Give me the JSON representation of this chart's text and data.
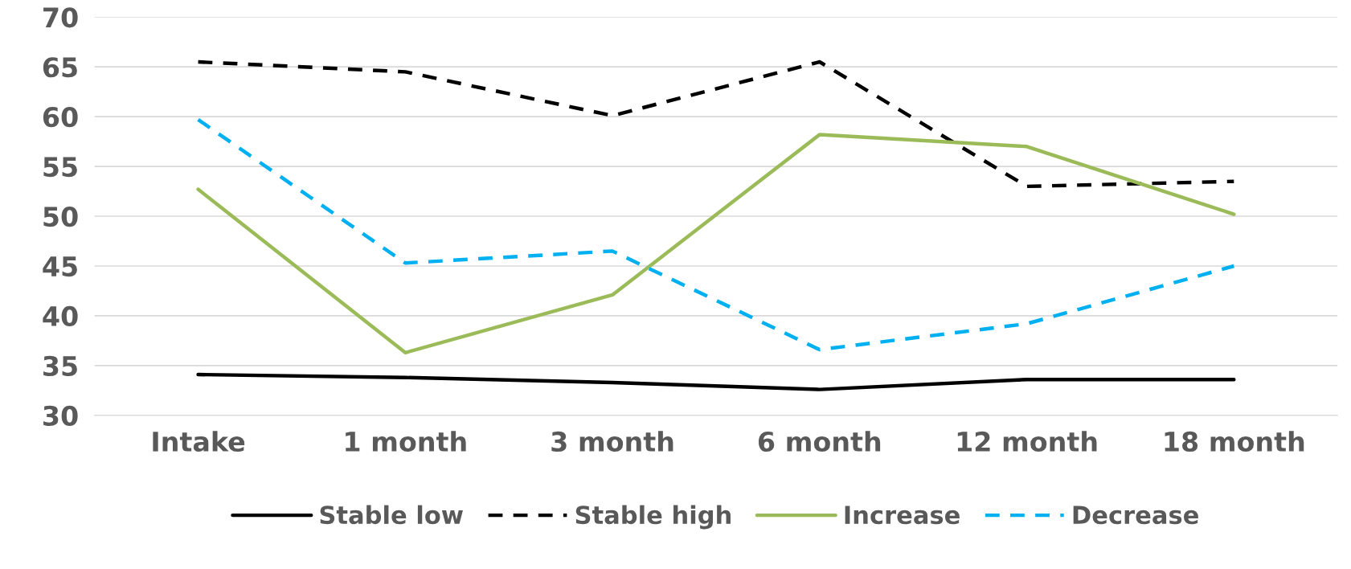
{
  "chart_data": {
    "type": "line",
    "categories": [
      "Intake",
      "1 month",
      "3 month",
      "6 month",
      "12 month",
      "18 month"
    ],
    "series": [
      {
        "name": "Stable low",
        "color": "#000000",
        "line_style": "solid",
        "values": [
          34.1,
          33.8,
          33.3,
          32.6,
          33.6,
          33.6
        ]
      },
      {
        "name": "Stable high",
        "color": "#000000",
        "line_style": "dashed",
        "values": [
          65.5,
          64.5,
          60.1,
          65.5,
          53.0,
          53.5
        ]
      },
      {
        "name": "Increase",
        "color": "#9bbb59",
        "line_style": "solid",
        "values": [
          52.7,
          36.3,
          42.1,
          58.2,
          57.0,
          50.2
        ]
      },
      {
        "name": "Decrease",
        "color": "#00b0f0",
        "line_style": "dashed",
        "values": [
          59.7,
          45.3,
          46.5,
          36.6,
          39.2,
          45.0
        ]
      }
    ],
    "ylim": [
      30,
      70
    ],
    "yticks": [
      30,
      35,
      40,
      45,
      50,
      55,
      60,
      65,
      70
    ],
    "grid": "y",
    "legend": "bottom",
    "marker": "none"
  }
}
